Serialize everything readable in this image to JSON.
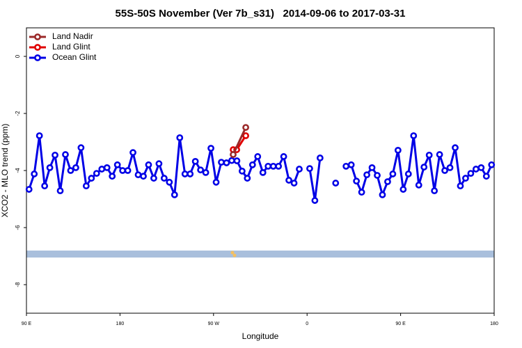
{
  "chart_data": {
    "type": "line",
    "title": "55S-50S November (Ver 7b_s31)   2014-09-06 to 2017-03-31",
    "x_label": "Longitude",
    "y_label": "XCO2 - MLO trend (ppm)",
    "xlim": [
      90,
      540
    ],
    "xticks": [
      {
        "value": 90,
        "label": "90 E"
      },
      {
        "value": 180,
        "label": "180"
      },
      {
        "value": 270,
        "label": "90 W"
      },
      {
        "value": 360,
        "label": "0"
      },
      {
        "value": 450,
        "label": "90 E"
      },
      {
        "value": 540,
        "label": "180"
      }
    ],
    "ylim": [
      -9,
      1
    ],
    "yticks": [
      0,
      -2,
      -4,
      -6,
      -8
    ],
    "legend": "top-left",
    "series": [
      {
        "name": "Land Nadir",
        "color": "#9b2a2a",
        "x": [
          288.9,
          301
        ],
        "values": [
          -3.44,
          -2.49
        ]
      },
      {
        "name": "Land Glint",
        "color": "#e00000",
        "x": [
          288.9,
          292.3,
          301
        ],
        "values": [
          -3.27,
          -3.27,
          -2.78
        ]
      },
      {
        "name": "Ocean Glint",
        "color": "#0000e6",
        "x": [
          92.5,
          97.5,
          102.5,
          107.5,
          112.5,
          117.5,
          122.5,
          127.5,
          132.5,
          137.5,
          142.5,
          147.5,
          152.5,
          157.5,
          162.5,
          167.5,
          172.5,
          177.5,
          182.5,
          187.5,
          192.5,
          197.5,
          202.5,
          207.5,
          212.5,
          217.5,
          222.5,
          227.5,
          232.5,
          237.5,
          242.5,
          247.5,
          252.5,
          257.5,
          262.5,
          267.5,
          272.5,
          277.5,
          282.5,
          287.5,
          292.5,
          297.5,
          302.5,
          307.5,
          312.5,
          317.5,
          322.5,
          327.5,
          332.5,
          337.5,
          342.5,
          347.5,
          352.5,
          357.5,
          362.5,
          367.5,
          372.5,
          377.5,
          382.5,
          387.5,
          392.5,
          397.5,
          402.5,
          407.5,
          412.5,
          417.5,
          422.5,
          427.5,
          432.5,
          437.5,
          442.5,
          447.5,
          452.5,
          457.5,
          462.5,
          467.5,
          472.5,
          477.5,
          482.5,
          487.5,
          492.5,
          497.5,
          502.5,
          507.5,
          512.5,
          517.5,
          522.5,
          527.5,
          532.5,
          537.5
        ],
        "values": [
          -4.66,
          -4.12,
          -2.78,
          -4.54,
          -3.9,
          -3.46,
          -4.71,
          -3.44,
          -4.0,
          -3.9,
          -3.2,
          -4.54,
          -4.27,
          -4.1,
          -3.95,
          -3.9,
          -4.2,
          -3.8,
          -4.0,
          -4.0,
          -3.37,
          -4.15,
          -4.2,
          -3.8,
          -4.27,
          -3.76,
          -4.27,
          -4.41,
          -4.85,
          -2.85,
          -4.12,
          -4.12,
          -3.68,
          -3.98,
          -4.07,
          -3.22,
          -4.41,
          -3.71,
          -3.73,
          -3.65,
          -3.66,
          -4.02,
          -4.27,
          -3.8,
          -3.51,
          -4.07,
          -3.85,
          -3.85,
          -3.85,
          -3.51,
          -4.34,
          -4.44,
          -3.95,
          null,
          -3.93,
          -5.05,
          -3.56,
          null,
          null,
          -4.44,
          null,
          -3.85,
          -3.8,
          -4.37,
          -4.76,
          -4.15,
          -3.9,
          -4.17,
          -4.85,
          -4.39,
          -4.12,
          -3.29,
          -4.66,
          -4.12,
          -2.78,
          -4.51,
          -3.88,
          -3.46,
          -4.71,
          -3.44,
          -4.0,
          -3.9,
          -3.2,
          -4.54,
          -4.27,
          -4.1,
          -3.95,
          -3.9,
          -4.2,
          -3.8
        ]
      }
    ]
  }
}
